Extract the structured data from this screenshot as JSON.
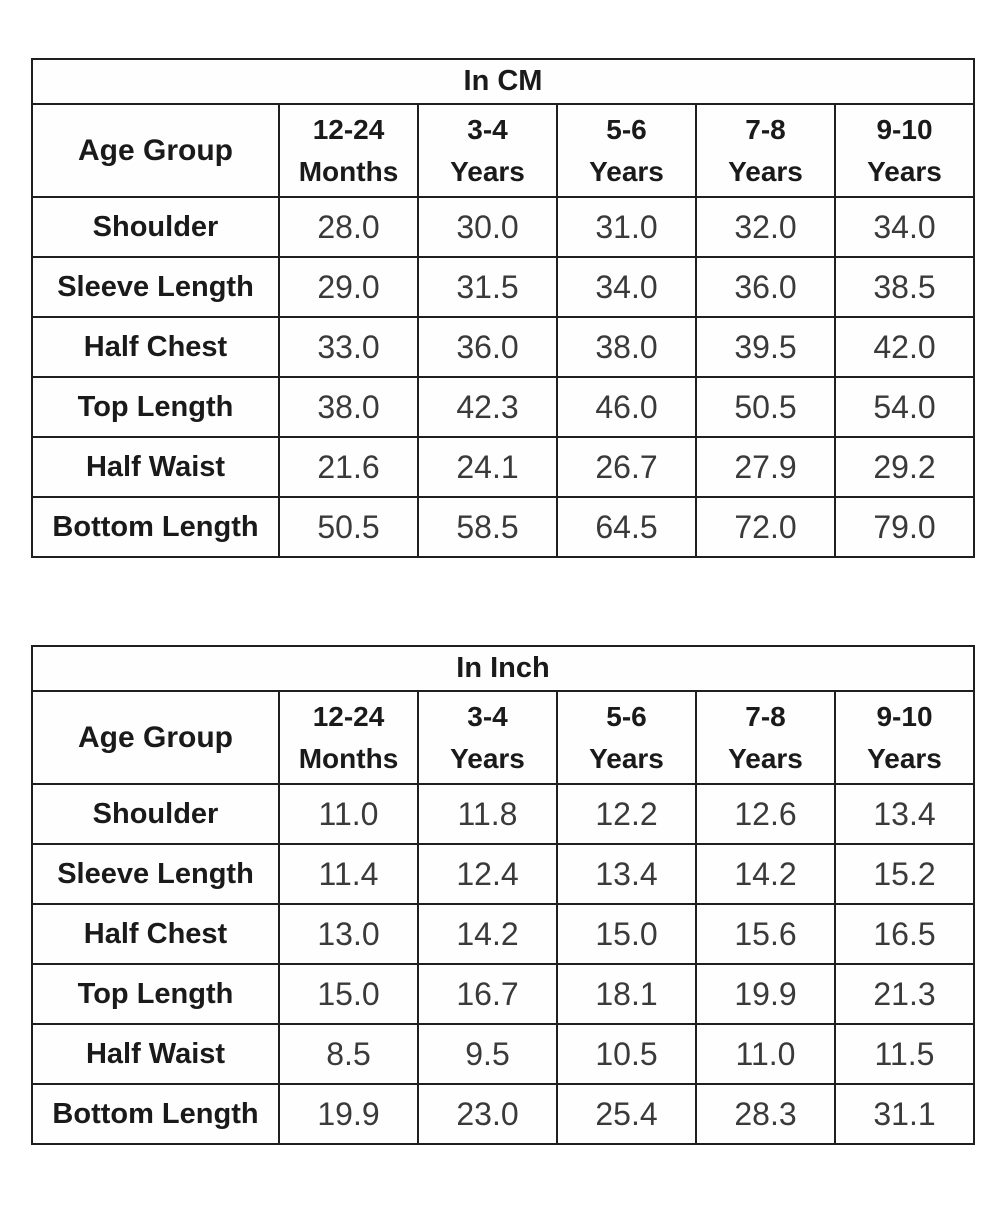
{
  "colors": {
    "background": "#ffffff",
    "border": "#1f1f1f",
    "header_text": "#1a1a1a",
    "value_text": "#3a3a3a"
  },
  "chart_data": [
    {
      "type": "table",
      "title": "In CM",
      "unit": "cm",
      "corner_header": "Age Group",
      "column_headers": [
        "12-24\nMonths",
        "3-4\nYears",
        "5-6\nYears",
        "7-8\nYears",
        "9-10\nYears"
      ],
      "rows": [
        {
          "label": "Shoulder",
          "values": [
            "28.0",
            "30.0",
            "31.0",
            "32.0",
            "34.0"
          ]
        },
        {
          "label": "Sleeve Length",
          "values": [
            "29.0",
            "31.5",
            "34.0",
            "36.0",
            "38.5"
          ]
        },
        {
          "label": "Half Chest",
          "values": [
            "33.0",
            "36.0",
            "38.0",
            "39.5",
            "42.0"
          ]
        },
        {
          "label": "Top Length",
          "values": [
            "38.0",
            "42.3",
            "46.0",
            "50.5",
            "54.0"
          ]
        },
        {
          "label": "Half Waist",
          "values": [
            "21.6",
            "24.1",
            "26.7",
            "27.9",
            "29.2"
          ]
        },
        {
          "label": "Bottom Length",
          "values": [
            "50.5",
            "58.5",
            "64.5",
            "72.0",
            "79.0"
          ]
        }
      ]
    },
    {
      "type": "table",
      "title": "In Inch",
      "unit": "inch",
      "corner_header": "Age Group",
      "column_headers": [
        "12-24\nMonths",
        "3-4\nYears",
        "5-6\nYears",
        "7-8\nYears",
        "9-10\nYears"
      ],
      "rows": [
        {
          "label": "Shoulder",
          "values": [
            "11.0",
            "11.8",
            "12.2",
            "12.6",
            "13.4"
          ]
        },
        {
          "label": "Sleeve Length",
          "values": [
            "11.4",
            "12.4",
            "13.4",
            "14.2",
            "15.2"
          ]
        },
        {
          "label": "Half Chest",
          "values": [
            "13.0",
            "14.2",
            "15.0",
            "15.6",
            "16.5"
          ]
        },
        {
          "label": "Top Length",
          "values": [
            "15.0",
            "16.7",
            "18.1",
            "19.9",
            "21.3"
          ]
        },
        {
          "label": "Half Waist",
          "values": [
            "8.5",
            "9.5",
            "10.5",
            "11.0",
            "11.5"
          ]
        },
        {
          "label": "Bottom Length",
          "values": [
            "19.9",
            "23.0",
            "25.4",
            "28.3",
            "31.1"
          ]
        }
      ]
    }
  ]
}
